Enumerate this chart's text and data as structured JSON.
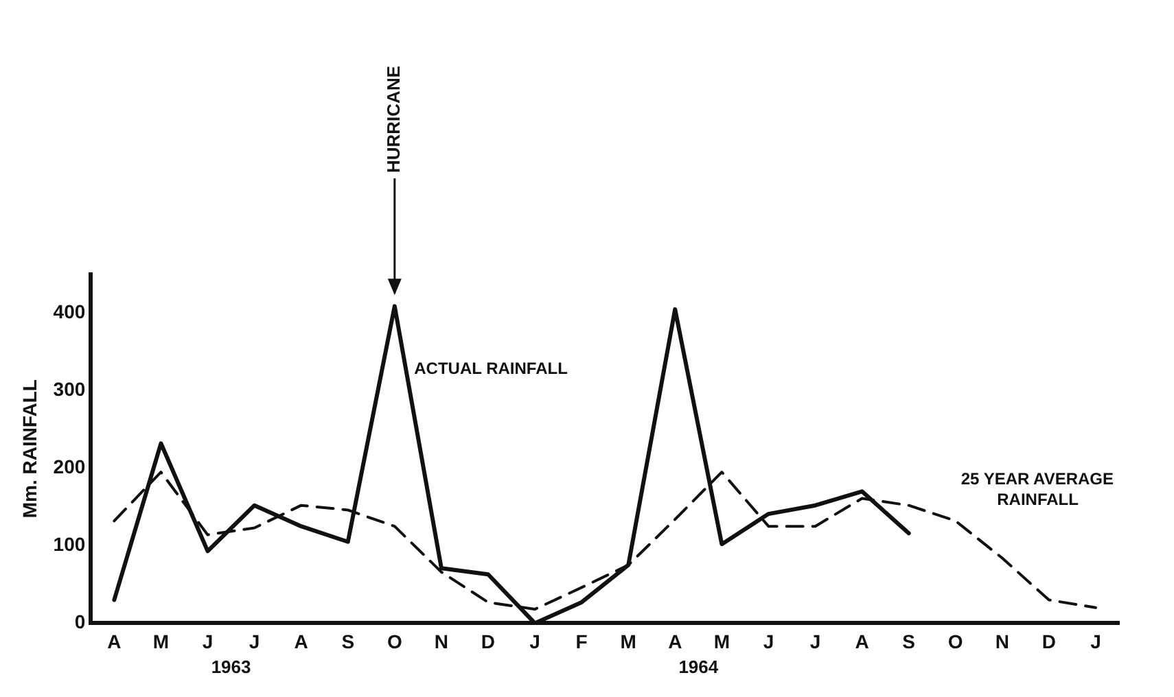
{
  "chart_data": {
    "type": "line",
    "ylabel": "Mm. RAINFALL",
    "categories": [
      "A",
      "M",
      "J",
      "J",
      "A",
      "S",
      "O",
      "N",
      "D",
      "J",
      "F",
      "M",
      "A",
      "M",
      "J",
      "J",
      "A",
      "S",
      "O",
      "N",
      "D",
      "J"
    ],
    "series": [
      {
        "name": "ACTUAL RAINFALL",
        "color": "#111111",
        "line_style": "solid",
        "values": [
          30,
          232,
          93,
          152,
          125,
          105,
          409,
          71,
          63,
          0,
          27,
          75,
          405,
          102,
          141,
          152,
          170,
          116,
          null,
          null,
          null,
          null
        ]
      },
      {
        "name": "25 YEAR AVERAGE RAINFALL",
        "color": "#111111",
        "line_style": "dashed",
        "values": [
          132,
          195,
          114,
          123,
          152,
          146,
          125,
          66,
          27,
          18,
          46,
          75,
          134,
          195,
          125,
          125,
          161,
          152,
          132,
          84,
          30,
          20
        ]
      }
    ],
    "ylim": [
      0,
      450
    ],
    "yticks": [
      0,
      100,
      200,
      300,
      400
    ],
    "grid": false,
    "legend": false,
    "marker": "none",
    "annotations": [
      {
        "text": "HURRICANE",
        "x": "O",
        "y": 409
      },
      "1963",
      "1964"
    ]
  }
}
